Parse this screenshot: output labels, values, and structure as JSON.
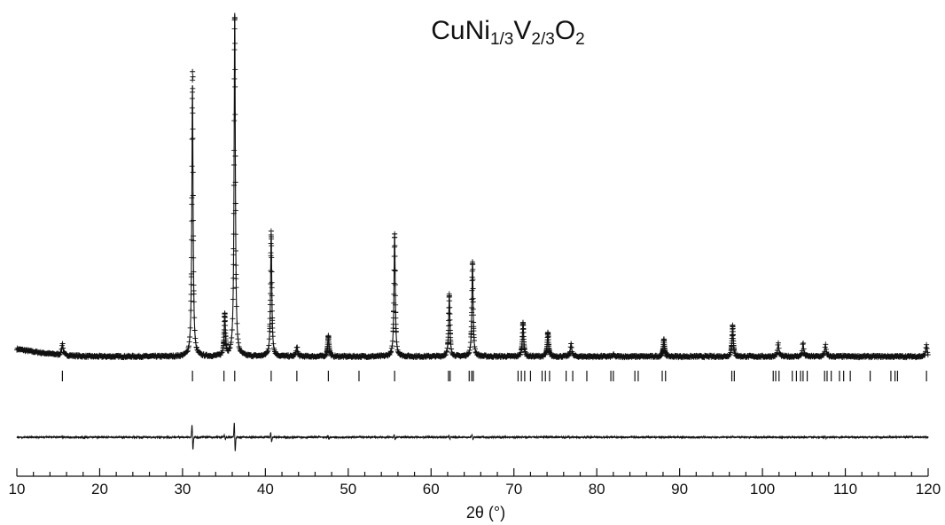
{
  "chart_data": {
    "type": "line",
    "title": {
      "base1": "CuNi",
      "sub1": "1/3",
      "base2": "V",
      "sub2": "2/3",
      "base3": "O",
      "sub3": "2"
    },
    "xlabel": "2θ (°)",
    "ylabel": "",
    "xlim": [
      10,
      120
    ],
    "x_major_ticks": [
      10,
      20,
      30,
      40,
      50,
      60,
      70,
      80,
      90,
      100,
      110,
      120
    ],
    "x_minor_step": 2,
    "background": {
      "start": 0.022,
      "plateau": 0.0
    },
    "peaks": [
      {
        "x": 15.5,
        "y": 0.035
      },
      {
        "x": 31.2,
        "y": 0.79
      },
      {
        "x": 35.1,
        "y": 0.12
      },
      {
        "x": 36.3,
        "y": 1.0
      },
      {
        "x": 40.7,
        "y": 0.36
      },
      {
        "x": 43.8,
        "y": 0.03
      },
      {
        "x": 47.6,
        "y": 0.06
      },
      {
        "x": 55.6,
        "y": 0.36
      },
      {
        "x": 62.2,
        "y": 0.18
      },
      {
        "x": 65.0,
        "y": 0.28
      },
      {
        "x": 71.1,
        "y": 0.1
      },
      {
        "x": 74.1,
        "y": 0.07
      },
      {
        "x": 76.9,
        "y": 0.04
      },
      {
        "x": 82.0,
        "y": 0.005
      },
      {
        "x": 88.1,
        "y": 0.05
      },
      {
        "x": 96.4,
        "y": 0.09
      },
      {
        "x": 101.9,
        "y": 0.04
      },
      {
        "x": 104.9,
        "y": 0.04
      },
      {
        "x": 107.6,
        "y": 0.035
      },
      {
        "x": 119.8,
        "y": 0.035
      }
    ],
    "bragg_positions": [
      15.5,
      31.2,
      35.0,
      36.3,
      40.7,
      43.8,
      47.6,
      51.3,
      55.6,
      62.1,
      62.3,
      64.6,
      64.9,
      65.1,
      70.5,
      70.9,
      71.3,
      72.0,
      73.4,
      73.8,
      74.3,
      76.3,
      77.1,
      78.8,
      81.7,
      82.0,
      84.6,
      85.0,
      87.9,
      88.3,
      96.3,
      96.6,
      101.3,
      101.6,
      102.0,
      103.6,
      104.1,
      104.6,
      104.9,
      105.4,
      107.5,
      107.8,
      108.3,
      109.3,
      109.8,
      110.6,
      113.0,
      115.5,
      116.0,
      116.3,
      119.8
    ],
    "difference_features": [
      {
        "x": 31.2,
        "amp": 0.55
      },
      {
        "x": 35.1,
        "amp": 0.1
      },
      {
        "x": 36.3,
        "amp": 0.62
      },
      {
        "x": 40.7,
        "amp": 0.2
      },
      {
        "x": 47.6,
        "amp": 0.08
      },
      {
        "x": 55.6,
        "amp": 0.12
      },
      {
        "x": 62.2,
        "amp": 0.08
      },
      {
        "x": 65.0,
        "amp": 0.12
      },
      {
        "x": 15.5,
        "amp": 0.04
      },
      {
        "x": 107.6,
        "amp": 0.04
      }
    ],
    "series": [
      {
        "role": "observed",
        "marker": "+"
      },
      {
        "role": "calculated",
        "style": "solid line"
      },
      {
        "role": "bragg",
        "style": "vertical ticks"
      },
      {
        "role": "difference",
        "style": "solid line"
      }
    ],
    "colors": {
      "ink": "#111111",
      "background": "#ffffff"
    },
    "grid": false,
    "legend": "none"
  }
}
